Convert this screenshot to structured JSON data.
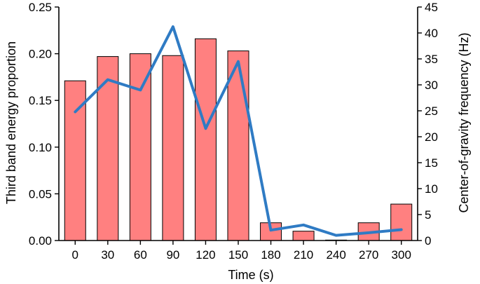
{
  "chart_data": {
    "type": "bar",
    "categories": [
      "0",
      "30",
      "60",
      "90",
      "120",
      "150",
      "180",
      "210",
      "240",
      "270",
      "300"
    ],
    "xlabel": "Time (s)",
    "series": [
      {
        "axis": "left",
        "type": "bar",
        "values": [
          0.171,
          0.197,
          0.2,
          0.198,
          0.216,
          0.203,
          0.019,
          0.01,
          0.0005,
          0.019,
          0.039
        ],
        "color": "#ff8080"
      },
      {
        "axis": "right",
        "type": "line",
        "values": [
          24.8,
          31.0,
          29.0,
          41.2,
          21.6,
          34.5,
          2.0,
          3.0,
          1.0,
          1.5,
          2.1
        ],
        "color": "#2f7bc4"
      }
    ],
    "left_axis": {
      "label": "Third band energy proportion",
      "ylim": [
        0,
        0.25
      ],
      "ticks": [
        "0.00",
        "0.05",
        "0.10",
        "0.15",
        "0.20",
        "0.25"
      ]
    },
    "right_axis": {
      "label": "Center-of-gravity frequency (Hz)",
      "ylim": [
        0,
        45
      ],
      "ticks": [
        "0",
        "5",
        "10",
        "15",
        "20",
        "25",
        "30",
        "35",
        "40",
        "45"
      ]
    },
    "grid": false
  }
}
